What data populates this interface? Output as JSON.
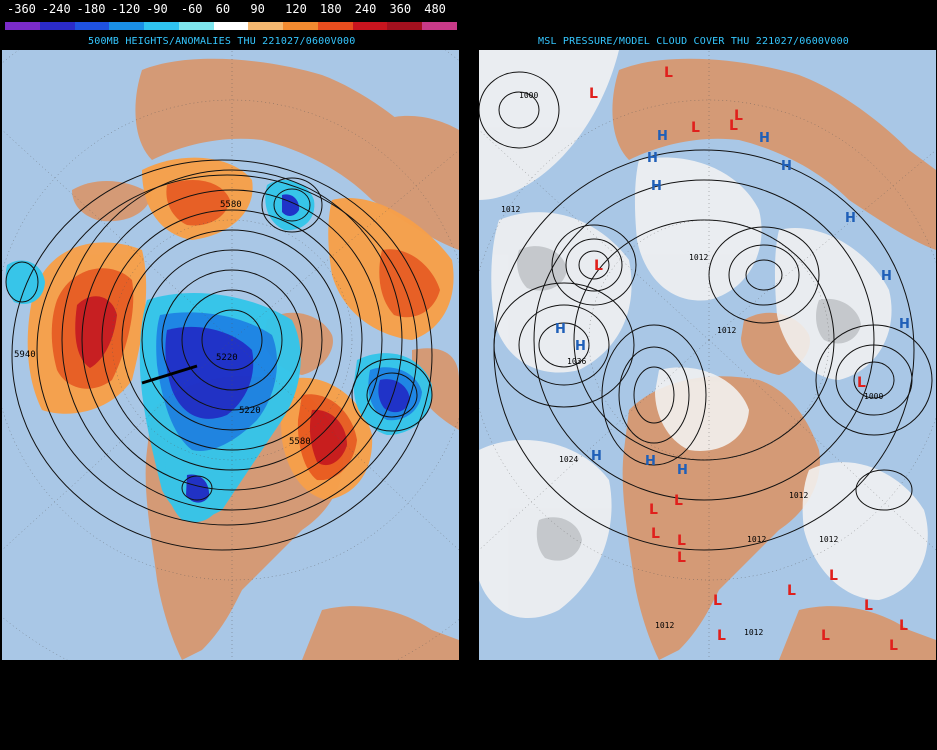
{
  "legend": {
    "labels": [
      "-360",
      "-240",
      "-180",
      "-120",
      "-90",
      "-60",
      "60",
      "90",
      "120",
      "180",
      "240",
      "360",
      "480"
    ],
    "colors": [
      "#7a2bc9",
      "#2b2bc8",
      "#1f52e0",
      "#1a8fe6",
      "#2fc3f0",
      "#7ee6ee",
      "#ffffff",
      "#f5b870",
      "#f28a30",
      "#e84d1e",
      "#c8141e",
      "#a2101e",
      "#c83a88"
    ]
  },
  "left_panel": {
    "title": "500MB HEIGHTS/ANOMALIES THU 221027/0600V000",
    "contour_labels": [
      "5580",
      "5940",
      "5220",
      "5220",
      "5580"
    ],
    "colors": {
      "ocean": "#a9c7e6",
      "land": "#d49a76",
      "neg_light": "#34c5ea",
      "neg_mid": "#1b84e4",
      "neg_deep": "#1c2fc8",
      "pos_light": "#f7a04a",
      "pos_mid": "#ea5d20",
      "pos_deep": "#c81a1c"
    }
  },
  "right_panel": {
    "title": "MSL PRESSURE/MODEL CLOUD COVER THU 221027/0600V000",
    "isobar_labels": [
      "1000",
      "1012",
      "1036",
      "1024",
      "1012",
      "1012",
      "1012",
      "1012",
      "1012",
      "1000",
      "1012",
      "1012"
    ],
    "high_symbol": "H",
    "low_symbol": "L",
    "colors": {
      "ocean": "#a9c7e6",
      "land": "#d49a76",
      "cloud": "#f2f2f2",
      "cloud_grey": "#c9c9c9",
      "high": "#1f5fb8",
      "low": "#e0201c"
    }
  }
}
